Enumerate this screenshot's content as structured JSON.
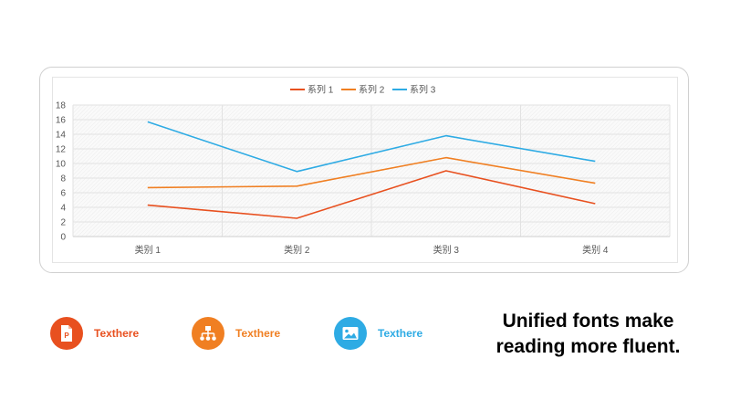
{
  "chart_data": {
    "type": "line",
    "categories": [
      "类别 1",
      "类别 2",
      "类别 3",
      "类别 4"
    ],
    "series": [
      {
        "name": "系列 1",
        "color": "#e8501f",
        "values": [
          4.3,
          2.5,
          9.0,
          4.5
        ]
      },
      {
        "name": "系列 2",
        "color": "#f07f22",
        "values": [
          6.7,
          6.9,
          10.8,
          7.3
        ]
      },
      {
        "name": "系列 3",
        "color": "#2eabe4",
        "values": [
          15.7,
          8.9,
          13.8,
          10.3
        ]
      }
    ],
    "ylim": [
      0,
      18
    ],
    "yticks": [
      0,
      2,
      4,
      6,
      8,
      10,
      12,
      14,
      16,
      18
    ],
    "grid": true,
    "legend": "top-center"
  },
  "features": [
    {
      "label": "Texthere",
      "icon": "presentation-file-icon",
      "color": "#e8501f"
    },
    {
      "label": "Texthere",
      "icon": "org-chart-icon",
      "color": "#f07f22"
    },
    {
      "label": "Texthere",
      "icon": "image-icon",
      "color": "#2eabe4"
    }
  ],
  "tagline": {
    "line1": "Unified fonts make",
    "line2": "reading more fluent."
  }
}
